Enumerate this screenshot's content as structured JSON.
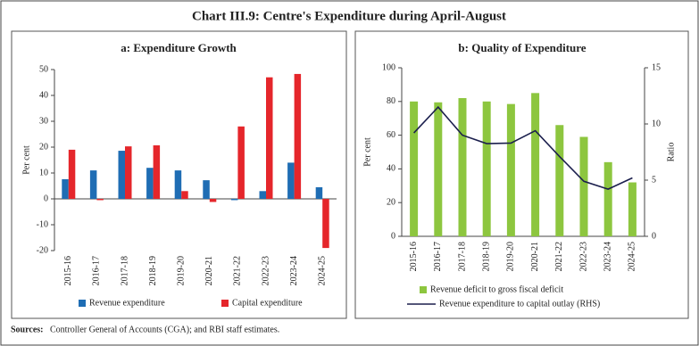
{
  "title": "Chart III.9: Centre's Expenditure during April-August",
  "source": {
    "label": "Sources:",
    "text": "Controller General of Accounts (CGA); and RBI staff estimates."
  },
  "chart_data": [
    {
      "type": "bar",
      "title": "a: Expenditure Growth",
      "y_label": "Per cent",
      "categories": [
        "2015-16",
        "2016-17",
        "2017-18",
        "2018-19",
        "2019-20",
        "2020-21",
        "2021-22",
        "2022-23",
        "2023-24",
        "2024-25"
      ],
      "series": [
        {
          "name": "Revenue expenditure",
          "color": "#1f6db4",
          "values": [
            7.6,
            11,
            18.6,
            12,
            11,
            7.2,
            -0.5,
            3,
            14,
            4.5
          ]
        },
        {
          "name": "Capital expenditure",
          "color": "#e5262b",
          "values": [
            19,
            -0.5,
            20.3,
            20.7,
            3,
            -1.2,
            28,
            47,
            48.3,
            -19
          ]
        }
      ],
      "ylim": [
        -20,
        50
      ],
      "yticks": [
        -20,
        -10,
        0,
        10,
        20,
        30,
        40,
        50
      ]
    },
    {
      "type": "combo",
      "title": "b: Quality of Expenditure",
      "y_label": "Per cent",
      "y2_label": "Ratio",
      "categories": [
        "2015-16",
        "2016-17",
        "2017-18",
        "2018-19",
        "2019-20",
        "2020-21",
        "2021-22",
        "2022-23",
        "2023-24",
        "2024-25"
      ],
      "series": [
        {
          "name": "Revenue deficit to gross fiscal deficit",
          "kind": "bar",
          "color": "#8dc63f",
          "values": [
            80,
            79.5,
            82,
            80,
            78.5,
            85,
            66,
            59,
            44,
            32
          ]
        },
        {
          "name": "Revenue expenditure to capital outlay (RHS)",
          "kind": "line",
          "axis": "y2",
          "color": "#1b1f4d",
          "values": [
            9.2,
            11.5,
            9.0,
            8.25,
            8.3,
            9.4,
            7.1,
            4.9,
            4.2,
            5.2
          ]
        }
      ],
      "ylim": [
        0,
        100
      ],
      "yticks": [
        0,
        20,
        40,
        60,
        80,
        100
      ],
      "y2lim": [
        0,
        15
      ],
      "y2ticks": [
        0,
        5,
        10,
        15
      ]
    }
  ]
}
